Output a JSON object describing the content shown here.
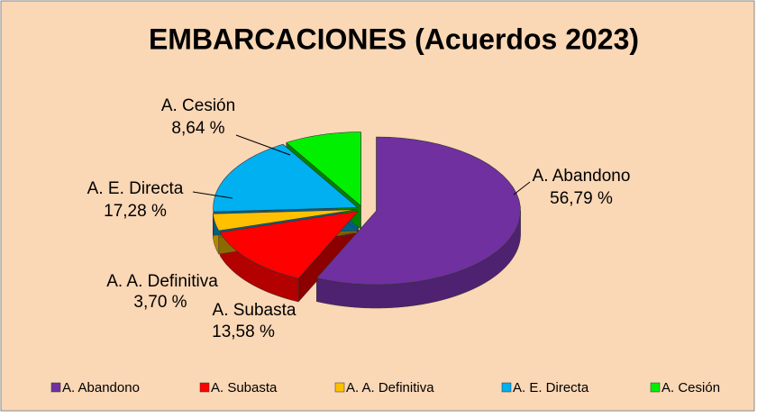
{
  "chart_data": {
    "type": "pie3d",
    "title": "EMBARCACIONES (Acuerdos 2023)",
    "categories": [
      "A. Abandono",
      "A. Subasta",
      "A. A. Definitiva",
      "A. E. Directa",
      "A. Cesión"
    ],
    "values": [
      56.79,
      13.58,
      3.7,
      17.28,
      8.64
    ],
    "value_labels": [
      "56,79 %",
      "13,58 %",
      "3,70 %",
      "17,28 %",
      "8,64 %"
    ],
    "colors": [
      "#7030a0",
      "#ff0000",
      "#ffc000",
      "#00b0f0",
      "#00f000"
    ],
    "legend": "bottom"
  }
}
